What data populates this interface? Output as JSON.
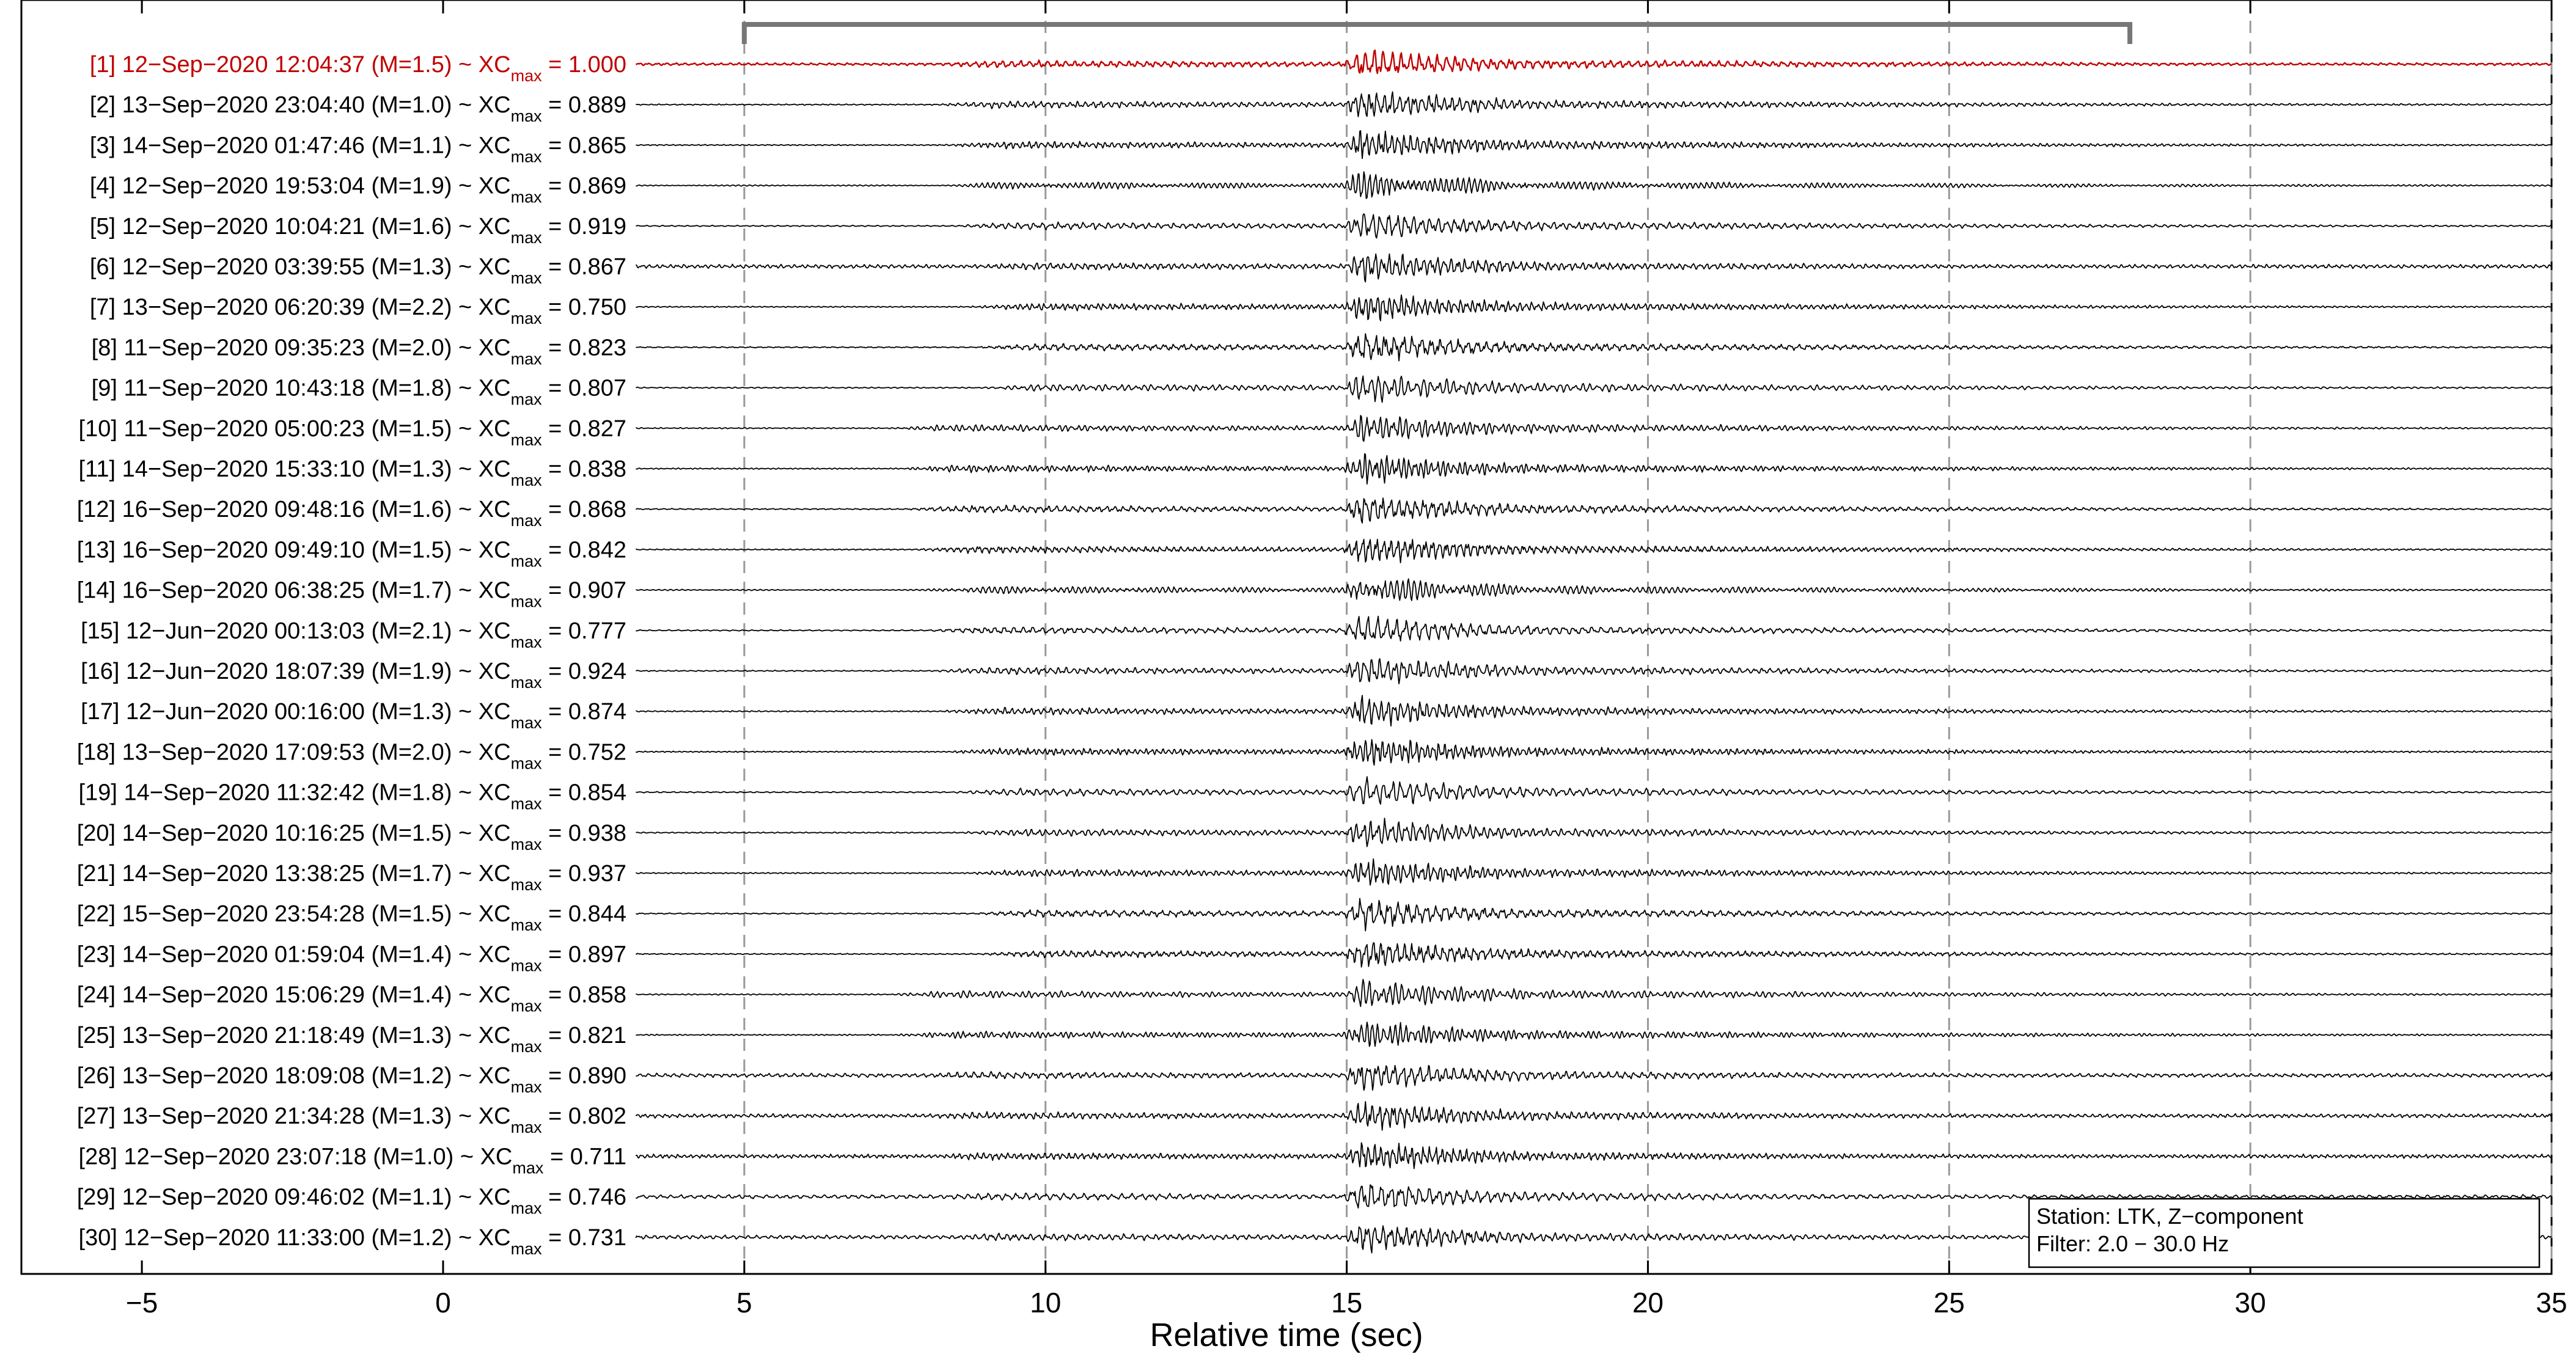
{
  "chart_data": {
    "type": "line",
    "xlabel": "Relative time (sec)",
    "xlim": [
      -7,
      35
    ],
    "x_ticks": [
      -5,
      0,
      5,
      10,
      15,
      20,
      25,
      30,
      35
    ],
    "x_tick_labels": [
      "−5",
      "0",
      "5",
      "10",
      "15",
      "20",
      "25",
      "30",
      "35"
    ],
    "vertical_dashed_lines_at": [
      5,
      10,
      15,
      20,
      25,
      30,
      35
    ],
    "window_bracket": {
      "start": 5,
      "end": 28
    },
    "trace_start_time": 3.2,
    "trace_end_time": 35,
    "legend": {
      "station": "Station: LTK, Z−component",
      "filter": "Filter: 2.0 − 30.0 Hz"
    },
    "colors": {
      "reference": "#c00000",
      "trace": "#000000",
      "dashed": "#999999",
      "bracket": "#777777"
    },
    "traces": [
      {
        "index": "[1]",
        "datetime": "12−Sep−2020 12:04:37",
        "magnitude": "(M=1.5)",
        "xcmax": "1.000",
        "reference": true
      },
      {
        "index": "[2]",
        "datetime": "13−Sep−2020 23:04:40",
        "magnitude": "(M=1.0)",
        "xcmax": "0.889"
      },
      {
        "index": "[3]",
        "datetime": "14−Sep−2020 01:47:46",
        "magnitude": "(M=1.1)",
        "xcmax": "0.865"
      },
      {
        "index": "[4]",
        "datetime": "12−Sep−2020 19:53:04",
        "magnitude": "(M=1.9)",
        "xcmax": "0.869"
      },
      {
        "index": "[5]",
        "datetime": "12−Sep−2020 10:04:21",
        "magnitude": "(M=1.6)",
        "xcmax": "0.919"
      },
      {
        "index": "[6]",
        "datetime": "12−Sep−2020 03:39:55",
        "magnitude": "(M=1.3)",
        "xcmax": "0.867"
      },
      {
        "index": "[7]",
        "datetime": "13−Sep−2020 06:20:39",
        "magnitude": "(M=2.2)",
        "xcmax": "0.750"
      },
      {
        "index": "[8]",
        "datetime": "11−Sep−2020 09:35:23",
        "magnitude": "(M=2.0)",
        "xcmax": "0.823"
      },
      {
        "index": "[9]",
        "datetime": "11−Sep−2020 10:43:18",
        "magnitude": "(M=1.8)",
        "xcmax": "0.807"
      },
      {
        "index": "[10]",
        "datetime": "11−Sep−2020 05:00:23",
        "magnitude": "(M=1.5)",
        "xcmax": "0.827"
      },
      {
        "index": "[11]",
        "datetime": "14−Sep−2020 15:33:10",
        "magnitude": "(M=1.3)",
        "xcmax": "0.838"
      },
      {
        "index": "[12]",
        "datetime": "16−Sep−2020 09:48:16",
        "magnitude": "(M=1.6)",
        "xcmax": "0.868"
      },
      {
        "index": "[13]",
        "datetime": "16−Sep−2020 09:49:10",
        "magnitude": "(M=1.5)",
        "xcmax": "0.842"
      },
      {
        "index": "[14]",
        "datetime": "16−Sep−2020 06:38:25",
        "magnitude": "(M=1.7)",
        "xcmax": "0.907"
      },
      {
        "index": "[15]",
        "datetime": "12−Jun−2020 00:13:03",
        "magnitude": "(M=2.1)",
        "xcmax": "0.777"
      },
      {
        "index": "[16]",
        "datetime": "12−Jun−2020 18:07:39",
        "magnitude": "(M=1.9)",
        "xcmax": "0.924"
      },
      {
        "index": "[17]",
        "datetime": "12−Jun−2020 00:16:00",
        "magnitude": "(M=1.3)",
        "xcmax": "0.874"
      },
      {
        "index": "[18]",
        "datetime": "13−Sep−2020 17:09:53",
        "magnitude": "(M=2.0)",
        "xcmax": "0.752"
      },
      {
        "index": "[19]",
        "datetime": "14−Sep−2020 11:32:42",
        "magnitude": "(M=1.8)",
        "xcmax": "0.854"
      },
      {
        "index": "[20]",
        "datetime": "14−Sep−2020 10:16:25",
        "magnitude": "(M=1.5)",
        "xcmax": "0.938"
      },
      {
        "index": "[21]",
        "datetime": "14−Sep−2020 13:38:25",
        "magnitude": "(M=1.7)",
        "xcmax": "0.937"
      },
      {
        "index": "[22]",
        "datetime": "15−Sep−2020 23:54:28",
        "magnitude": "(M=1.5)",
        "xcmax": "0.844"
      },
      {
        "index": "[23]",
        "datetime": "14−Sep−2020 01:59:04",
        "magnitude": "(M=1.4)",
        "xcmax": "0.897"
      },
      {
        "index": "[24]",
        "datetime": "14−Sep−2020 15:06:29",
        "magnitude": "(M=1.4)",
        "xcmax": "0.858"
      },
      {
        "index": "[25]",
        "datetime": "13−Sep−2020 21:18:49",
        "magnitude": "(M=1.3)",
        "xcmax": "0.821"
      },
      {
        "index": "[26]",
        "datetime": "13−Sep−2020 18:09:08",
        "magnitude": "(M=1.2)",
        "xcmax": "0.890"
      },
      {
        "index": "[27]",
        "datetime": "13−Sep−2020 21:34:28",
        "magnitude": "(M=1.3)",
        "xcmax": "0.802"
      },
      {
        "index": "[28]",
        "datetime": "12−Sep−2020 23:07:18",
        "magnitude": "(M=1.0)",
        "xcmax": "0.711"
      },
      {
        "index": "[29]",
        "datetime": "12−Sep−2020 09:46:02",
        "magnitude": "(M=1.1)",
        "xcmax": "0.746"
      },
      {
        "index": "[30]",
        "datetime": "12−Sep−2020 11:33:00",
        "magnitude": "(M=1.2)",
        "xcmax": "0.731"
      }
    ]
  }
}
